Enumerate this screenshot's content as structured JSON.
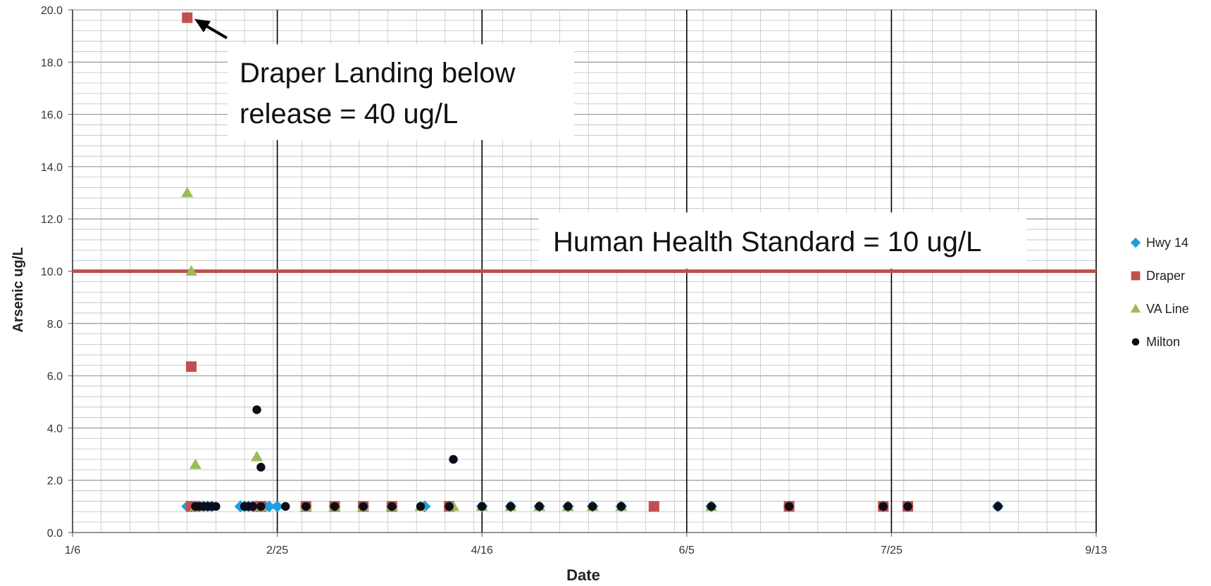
{
  "chart_data": {
    "type": "scatter",
    "xlabel": "Date",
    "ylabel": "Arsenic  ug/L",
    "x_ticks": [
      "1/6",
      "2/25",
      "4/16",
      "6/5",
      "7/25",
      "9/13"
    ],
    "x_range": [
      "1/6",
      "9/13"
    ],
    "ylim": [
      0,
      20
    ],
    "y_ticks": [
      "0.0",
      "2.0",
      "4.0",
      "6.0",
      "8.0",
      "10.0",
      "12.0",
      "14.0",
      "16.0",
      "18.0",
      "20.0"
    ],
    "grid": true,
    "legend": "right",
    "reference_line": {
      "y": 10,
      "color": "#c0504d"
    },
    "annotations": [
      {
        "lines": [
          "Draper Landing below",
          "release = 40 ug/L"
        ]
      },
      {
        "lines": [
          "Human Health Standard = 10 ug/L"
        ]
      }
    ],
    "series": [
      {
        "name": "Hwy 14",
        "marker": "diamond",
        "color": "#1f9ede",
        "points": [
          [
            "2/3",
            1.0
          ],
          [
            "2/4",
            1.0
          ],
          [
            "2/5",
            1.0
          ],
          [
            "2/6",
            1.0
          ],
          [
            "2/7",
            1.0
          ],
          [
            "2/8",
            1.0
          ],
          [
            "2/9",
            1.0
          ],
          [
            "2/16",
            1.0
          ],
          [
            "2/17",
            1.0
          ],
          [
            "2/18",
            1.0
          ],
          [
            "2/19",
            1.0
          ],
          [
            "2/20",
            1.0
          ],
          [
            "2/21",
            1.0
          ],
          [
            "2/22",
            1.0
          ],
          [
            "2/23",
            1.0
          ],
          [
            "2/25",
            1.0
          ],
          [
            "3/4",
            1.0
          ],
          [
            "3/11",
            1.0
          ],
          [
            "3/18",
            1.0
          ],
          [
            "3/25",
            1.0
          ],
          [
            "4/2",
            1.0
          ],
          [
            "4/8",
            1.0
          ],
          [
            "4/16",
            1.0
          ],
          [
            "4/23",
            1.0
          ],
          [
            "4/30",
            1.0
          ],
          [
            "5/7",
            1.0
          ],
          [
            "5/13",
            1.0
          ],
          [
            "5/20",
            1.0
          ],
          [
            "6/11",
            1.0
          ],
          [
            "6/30",
            1.0
          ],
          [
            "7/23",
            1.0
          ],
          [
            "7/29",
            1.0
          ],
          [
            "8/20",
            1.0
          ]
        ]
      },
      {
        "name": "Draper",
        "marker": "square",
        "color": "#c0504d",
        "points": [
          [
            "2/3",
            19.7
          ],
          [
            "2/4",
            6.35
          ],
          [
            "2/4",
            1.0
          ],
          [
            "2/5",
            1.0
          ],
          [
            "2/20",
            1.0
          ],
          [
            "2/21",
            1.0
          ],
          [
            "3/4",
            1.0
          ],
          [
            "3/11",
            1.0
          ],
          [
            "3/18",
            1.0
          ],
          [
            "3/25",
            1.0
          ],
          [
            "4/8",
            1.0
          ],
          [
            "5/28",
            1.0
          ],
          [
            "6/30",
            1.0
          ],
          [
            "7/23",
            1.0
          ],
          [
            "7/29",
            1.0
          ]
        ]
      },
      {
        "name": "VA Line",
        "marker": "triangle",
        "color": "#9bbb59",
        "points": [
          [
            "2/3",
            13.0
          ],
          [
            "2/4",
            10.0
          ],
          [
            "2/5",
            2.6
          ],
          [
            "2/5",
            1.0
          ],
          [
            "2/6",
            1.0
          ],
          [
            "2/20",
            2.9
          ],
          [
            "2/21",
            1.0
          ],
          [
            "3/4",
            1.0
          ],
          [
            "3/11",
            1.0
          ],
          [
            "3/18",
            1.0
          ],
          [
            "3/25",
            1.0
          ],
          [
            "4/1",
            1.0
          ],
          [
            "4/9",
            1.0
          ],
          [
            "4/16",
            1.0
          ],
          [
            "4/23",
            1.0
          ],
          [
            "4/30",
            1.0
          ],
          [
            "5/7",
            1.0
          ],
          [
            "5/13",
            1.0
          ],
          [
            "5/20",
            1.0
          ],
          [
            "6/11",
            1.0
          ]
        ]
      },
      {
        "name": "Milton",
        "marker": "circle",
        "color": "#0d0d1a",
        "points": [
          [
            "2/5",
            1.0
          ],
          [
            "2/6",
            1.0
          ],
          [
            "2/7",
            1.0
          ],
          [
            "2/8",
            1.0
          ],
          [
            "2/9",
            1.0
          ],
          [
            "2/10",
            1.0
          ],
          [
            "2/17",
            1.0
          ],
          [
            "2/18",
            1.0
          ],
          [
            "2/19",
            1.0
          ],
          [
            "2/20",
            4.7
          ],
          [
            "2/21",
            2.5
          ],
          [
            "2/21",
            1.0
          ],
          [
            "2/27",
            1.0
          ],
          [
            "3/4",
            1.0
          ],
          [
            "3/11",
            1.0
          ],
          [
            "3/18",
            1.0
          ],
          [
            "3/25",
            1.0
          ],
          [
            "4/1",
            1.0
          ],
          [
            "4/8",
            1.0
          ],
          [
            "4/9",
            2.8
          ],
          [
            "4/16",
            1.0
          ],
          [
            "4/23",
            1.0
          ],
          [
            "4/30",
            1.0
          ],
          [
            "5/7",
            1.0
          ],
          [
            "5/13",
            1.0
          ],
          [
            "5/20",
            1.0
          ],
          [
            "6/11",
            1.0
          ],
          [
            "6/30",
            1.0
          ],
          [
            "7/23",
            1.0
          ],
          [
            "7/29",
            1.0
          ],
          [
            "8/20",
            1.0
          ]
        ]
      }
    ]
  }
}
